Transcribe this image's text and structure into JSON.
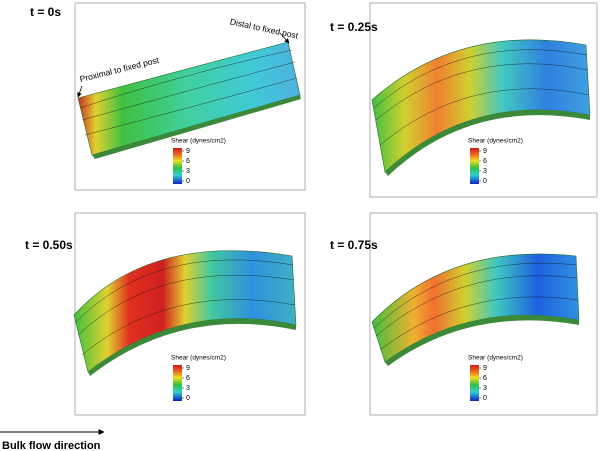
{
  "panels": [
    {
      "label": "t = 0s",
      "annotations": [
        "Proximal to fixed post",
        "Distal to fixed post"
      ],
      "colorbar": {
        "title": "Shear (dynes/cm2)",
        "ticks": [
          9,
          6,
          3,
          0
        ]
      }
    },
    {
      "label": "t = 0.25s",
      "colorbar": {
        "title": "Shear (dynes/cm2)",
        "ticks": [
          9,
          6,
          3,
          0
        ]
      }
    },
    {
      "label": "t = 0.50s",
      "colorbar": {
        "title": "Shear (dynes/cm2)",
        "ticks": [
          9,
          6,
          3,
          0
        ]
      }
    },
    {
      "label": "t = 0.75s",
      "colorbar": {
        "title": "Shear (dynes/cm2)",
        "ticks": [
          9,
          6,
          3,
          0
        ]
      }
    }
  ],
  "footer": "Bulk flow direction"
}
